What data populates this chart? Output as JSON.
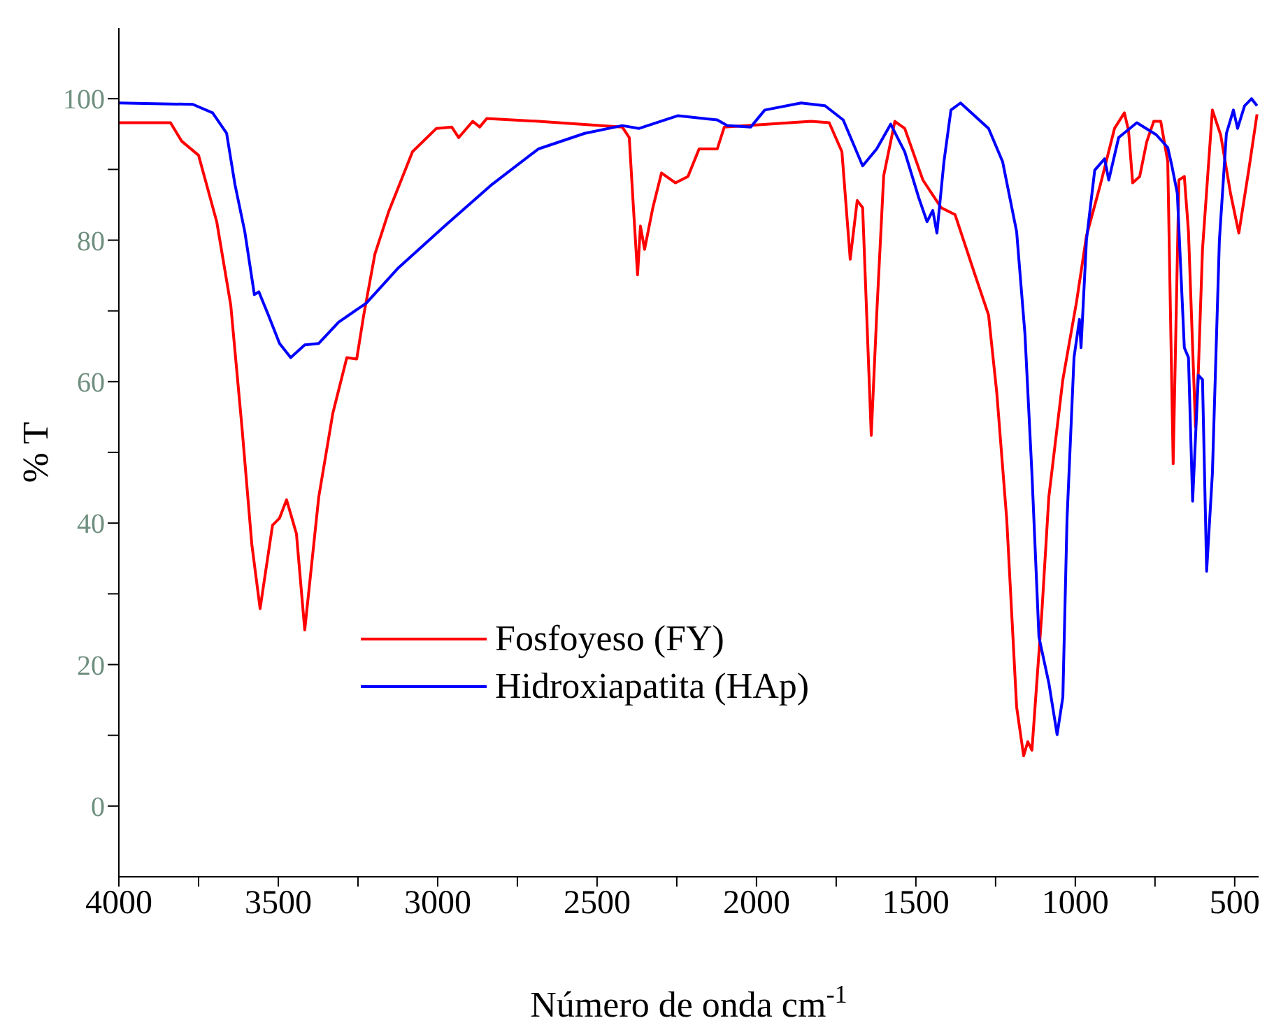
{
  "chart_data": {
    "type": "line",
    "xlabel": "Número de onda cm$^{-1}$",
    "ylabel": "% T",
    "xlim": [
      4000,
      425
    ],
    "xticks": [
      4000,
      {
        "value": 3750,
        "label": null
      },
      3500,
      {
        "value": 3250,
        "label": null
      },
      3000,
      {
        "value": 2750,
        "label": null
      },
      2500,
      {
        "value": 2250,
        "label": null
      },
      2000,
      {
        "value": 1750,
        "label": null
      },
      1500,
      {
        "value": 1250,
        "label": null
      },
      1000,
      {
        "value": 750,
        "label": null
      },
      500
    ],
    "ylim": [
      -10,
      110
    ],
    "yticks": [
      0,
      {
        "value": 10,
        "label": null
      },
      20,
      {
        "value": 30,
        "label": null
      },
      40,
      {
        "value": 50,
        "label": null
      },
      60,
      {
        "value": 70,
        "label": null
      },
      80,
      {
        "value": 90,
        "label": null
      },
      100
    ],
    "legend": "bottom",
    "series": [
      {
        "name": "Fosfoyeso (FY)",
        "color": "#ff0000",
        "x": [
          4000,
          3838,
          3803,
          3750,
          3693,
          3649,
          3614,
          3583,
          3557,
          3518,
          3496,
          3474,
          3443,
          3417,
          3373,
          3329,
          3285,
          3254,
          3232,
          3197,
          3154,
          3079,
          3004,
          2956,
          2934,
          2890,
          2868,
          2846,
          2684,
          2421,
          2399,
          2386,
          2373,
          2364,
          2351,
          2325,
          2298,
          2254,
          2215,
          2180,
          2123,
          2101,
          1829,
          1772,
          1732,
          1706,
          1684,
          1667,
          1640,
          1623,
          1601,
          1566,
          1535,
          1478,
          1421,
          1377,
          1316,
          1272,
          1246,
          1215,
          1184,
          1162,
          1149,
          1136,
          1105,
          1083,
          1039,
          996,
          965,
          921,
          877,
          846,
          833,
          820,
          798,
          776,
          754,
          732,
          710,
          693,
          675,
          658,
          645,
          623,
          614,
          601,
          570,
          544,
          513,
          487,
          456,
          430
        ],
        "values": [
          96.6,
          96.6,
          94,
          92,
          82.6,
          70.8,
          53.6,
          37,
          27.9,
          39.7,
          40.7,
          43.3,
          38.5,
          24.9,
          43.7,
          55.5,
          63.4,
          63.2,
          69.4,
          78,
          84,
          92.5,
          95.8,
          96,
          94.5,
          96.8,
          96,
          97.2,
          96.8,
          96,
          94.5,
          84.6,
          75.1,
          82,
          78.7,
          84.6,
          89.5,
          88.1,
          89,
          92.9,
          92.9,
          96,
          96.8,
          96.6,
          92.5,
          77.3,
          85.6,
          84.6,
          52.4,
          69.4,
          89.1,
          96.8,
          95.8,
          88.5,
          84.6,
          83.6,
          75.3,
          69.4,
          58.3,
          40.5,
          14,
          7.1,
          9.1,
          7.9,
          27.3,
          43.7,
          60.3,
          71.3,
          80.6,
          87.9,
          95.8,
          98,
          95.5,
          88.1,
          89,
          93.9,
          96.8,
          96.8,
          91.1,
          48.4,
          88.5,
          89,
          81.2,
          53.6,
          61.5,
          78.7,
          98.4,
          94.9,
          86.6,
          81,
          89.9,
          97.8
        ]
      },
      {
        "name": "Hidroxiapatita (HAp)",
        "color": "#0000ff",
        "x": [
          4000,
          3768,
          3706,
          3662,
          3636,
          3605,
          3575,
          3561,
          3531,
          3496,
          3461,
          3417,
          3373,
          3311,
          3224,
          3123,
          2978,
          2829,
          2684,
          2539,
          2421,
          2368,
          2246,
          2123,
          2092,
          2018,
          1974,
          1860,
          1785,
          1728,
          1667,
          1623,
          1579,
          1535,
          1491,
          1465,
          1447,
          1434,
          1412,
          1390,
          1360,
          1272,
          1228,
          1184,
          1158,
          1136,
          1114,
          1083,
          1057,
          1039,
          1026,
          1004,
          987,
          982,
          965,
          939,
          908,
          895,
          864,
          807,
          746,
          710,
          697,
          680,
          658,
          645,
          632,
          614,
          601,
          588,
          570,
          548,
          526,
          504,
          491,
          469,
          447,
          430
        ],
        "values": [
          99.4,
          99.2,
          98,
          95.1,
          87.9,
          81.2,
          72.3,
          72.7,
          69.4,
          65.4,
          63.4,
          65.2,
          65.4,
          68.4,
          71.1,
          76.1,
          82,
          87.9,
          92.9,
          95.1,
          96.2,
          95.8,
          97.6,
          97,
          96.2,
          96,
          98.4,
          99.4,
          99,
          97,
          90.5,
          92.9,
          96.4,
          92.5,
          86,
          82.6,
          84.2,
          81,
          91.1,
          98.4,
          99.4,
          95.8,
          91.1,
          81.2,
          66.8,
          47,
          23.9,
          17.4,
          10.1,
          15.4,
          40.5,
          63.4,
          68.8,
          64.8,
          80,
          89.9,
          91.5,
          88.5,
          94.5,
          96.6,
          94.9,
          93.1,
          90.5,
          86.6,
          64.8,
          63.4,
          43.1,
          60.9,
          60.3,
          33.2,
          47,
          80,
          95.1,
          98.4,
          95.8,
          99,
          100,
          99
        ]
      }
    ]
  }
}
